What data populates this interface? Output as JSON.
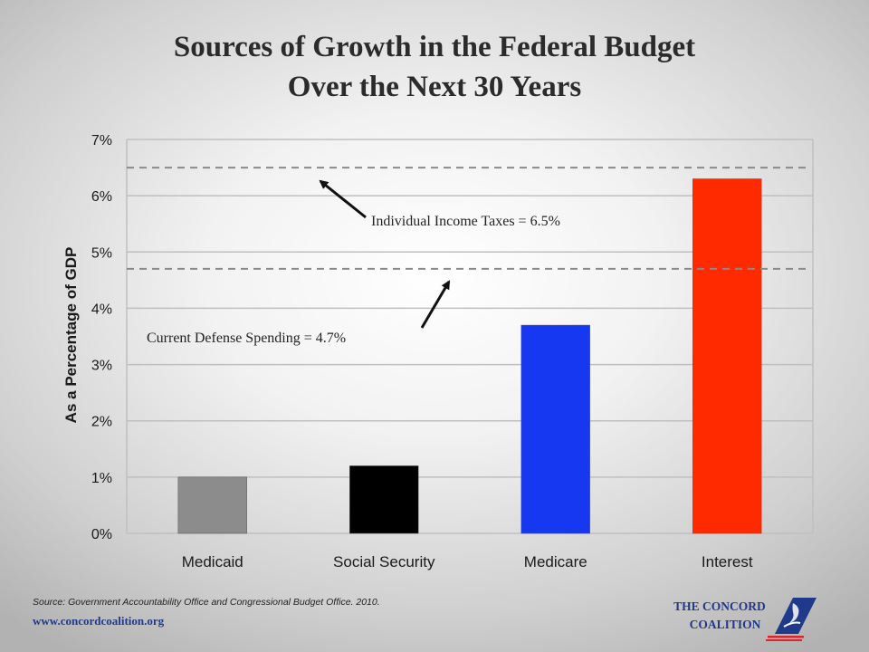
{
  "title": {
    "line1": "Sources of Growth in the Federal Budget",
    "line2": "Over the Next 30 Years"
  },
  "chart_data": {
    "type": "bar",
    "title": "Sources of Growth in the Federal Budget Over the Next 30 Years",
    "xlabel": "",
    "ylabel": "As a Percentage of GDP",
    "categories": [
      "Medicaid",
      "Social Security",
      "Medicare",
      "Interest"
    ],
    "values": [
      1.0,
      1.2,
      3.7,
      6.3
    ],
    "bar_colors": [
      "#8c8c8c",
      "#000000",
      "#1538f0",
      "#ff2a00"
    ],
    "ylim": [
      0,
      7
    ],
    "yticks": [
      0,
      1,
      2,
      3,
      4,
      5,
      6,
      7
    ],
    "ytick_labels": [
      "0%",
      "1%",
      "2%",
      "3%",
      "4%",
      "5%",
      "6%",
      "7%"
    ],
    "grid": true,
    "reference_lines": [
      {
        "value": 6.5,
        "label": "Individual Income Taxes = 6.5%",
        "color": "#8a8a8a"
      },
      {
        "value": 4.7,
        "label": "Current Defense Spending = 4.7%",
        "color": "#8a8a8a"
      }
    ]
  },
  "footer": {
    "source": "Source: Government Accountability Office and Congressional Budget Office. 2010.",
    "url": "www.concordcoalition.org"
  },
  "logo": {
    "line1": "THE CONCORD",
    "line2": "COALITION"
  },
  "colors": {
    "axis_text": "#1a1a1a",
    "gridline": "#bfbfbf",
    "brand_blue": "#1f3a8a",
    "brand_red": "#d8262c"
  }
}
